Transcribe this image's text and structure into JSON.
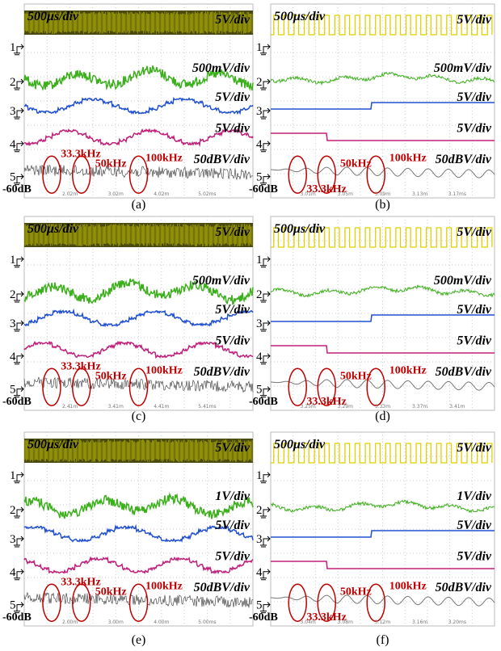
{
  "panels": [
    {
      "caption": "(a)",
      "time_div": "500μs/div",
      "scales": [
        "5V/div",
        "500mV/div",
        "5V/div",
        "5V/div",
        "50dBV/div"
      ],
      "channels": [
        "1",
        "2",
        "3",
        "4",
        "5"
      ],
      "freqs": [
        "33.3kHz",
        "50kHz",
        "100kHz"
      ],
      "db": "-60dB",
      "time_labels": [
        "2.02m",
        "3.02m",
        "4.02m",
        "5.02ms"
      ]
    },
    {
      "caption": "(b)",
      "time_div": "500μs/div",
      "scales": [
        "5V/div",
        "500mV/div",
        "5V/div",
        "5V/div",
        "50dBV/div"
      ],
      "channels": [
        "1",
        "2",
        "3",
        "4",
        "5"
      ],
      "freqs": [
        "33.3kHz",
        "50kHz",
        "100kHz"
      ],
      "db": "-60dB",
      "time_labels": [
        "3.01m",
        "3.05m",
        "3.09m",
        "3.13m",
        "3.17ms"
      ]
    },
    {
      "caption": "(c)",
      "time_div": "500μs/div",
      "scales": [
        "5V/div",
        "500mV/div",
        "5V/div",
        "5V/div",
        "50dBV/div"
      ],
      "channels": [
        "1",
        "2",
        "3",
        "4",
        "5"
      ],
      "freqs": [
        "33.3kHz",
        "50kHz",
        "100kHz"
      ],
      "db": "-60dB",
      "time_labels": [
        "2.41m",
        "3.41m",
        "4.41m",
        "5.41ms"
      ]
    },
    {
      "caption": "(d)",
      "time_div": "500μs/div",
      "scales": [
        "5V/div",
        "500mV/div",
        "5V/div",
        "5V/div",
        "50dBV/div"
      ],
      "channels": [
        "1",
        "2",
        "3",
        "4",
        "5"
      ],
      "freqs": [
        "33.3kHz",
        "50kHz",
        "100kHz"
      ],
      "db": "-60dB",
      "time_labels": [
        "3.25m",
        "3.29m",
        "3.33m",
        "3.37m",
        "3.41m"
      ]
    },
    {
      "caption": "(e)",
      "time_div": "500μs/div",
      "scales": [
        "5V/div",
        "1V/div",
        "5V/div",
        "5V/div",
        "50dBV/div"
      ],
      "channels": [
        "1",
        "2",
        "3",
        "4",
        "5"
      ],
      "freqs": [
        "33.3kHz",
        "50kHz",
        "100kHz"
      ],
      "db": "-60dB",
      "time_labels": [
        "2.00m",
        "3.00m",
        "4.00m",
        "5.00ms"
      ]
    },
    {
      "caption": "(f)",
      "time_div": "500μs/div",
      "scales": [
        "5V/div",
        "1V/div",
        "5V/div",
        "5V/div",
        "50dBV/div"
      ],
      "channels": [
        "1",
        "2",
        "3",
        "4",
        "5"
      ],
      "freqs": [
        "33.3kHz",
        "50kHz",
        "100kHz"
      ],
      "db": "-60dB",
      "time_labels": [
        "3.04m",
        "3.08m",
        "3.12m",
        "3.16m",
        "3.20ms"
      ]
    }
  ]
}
